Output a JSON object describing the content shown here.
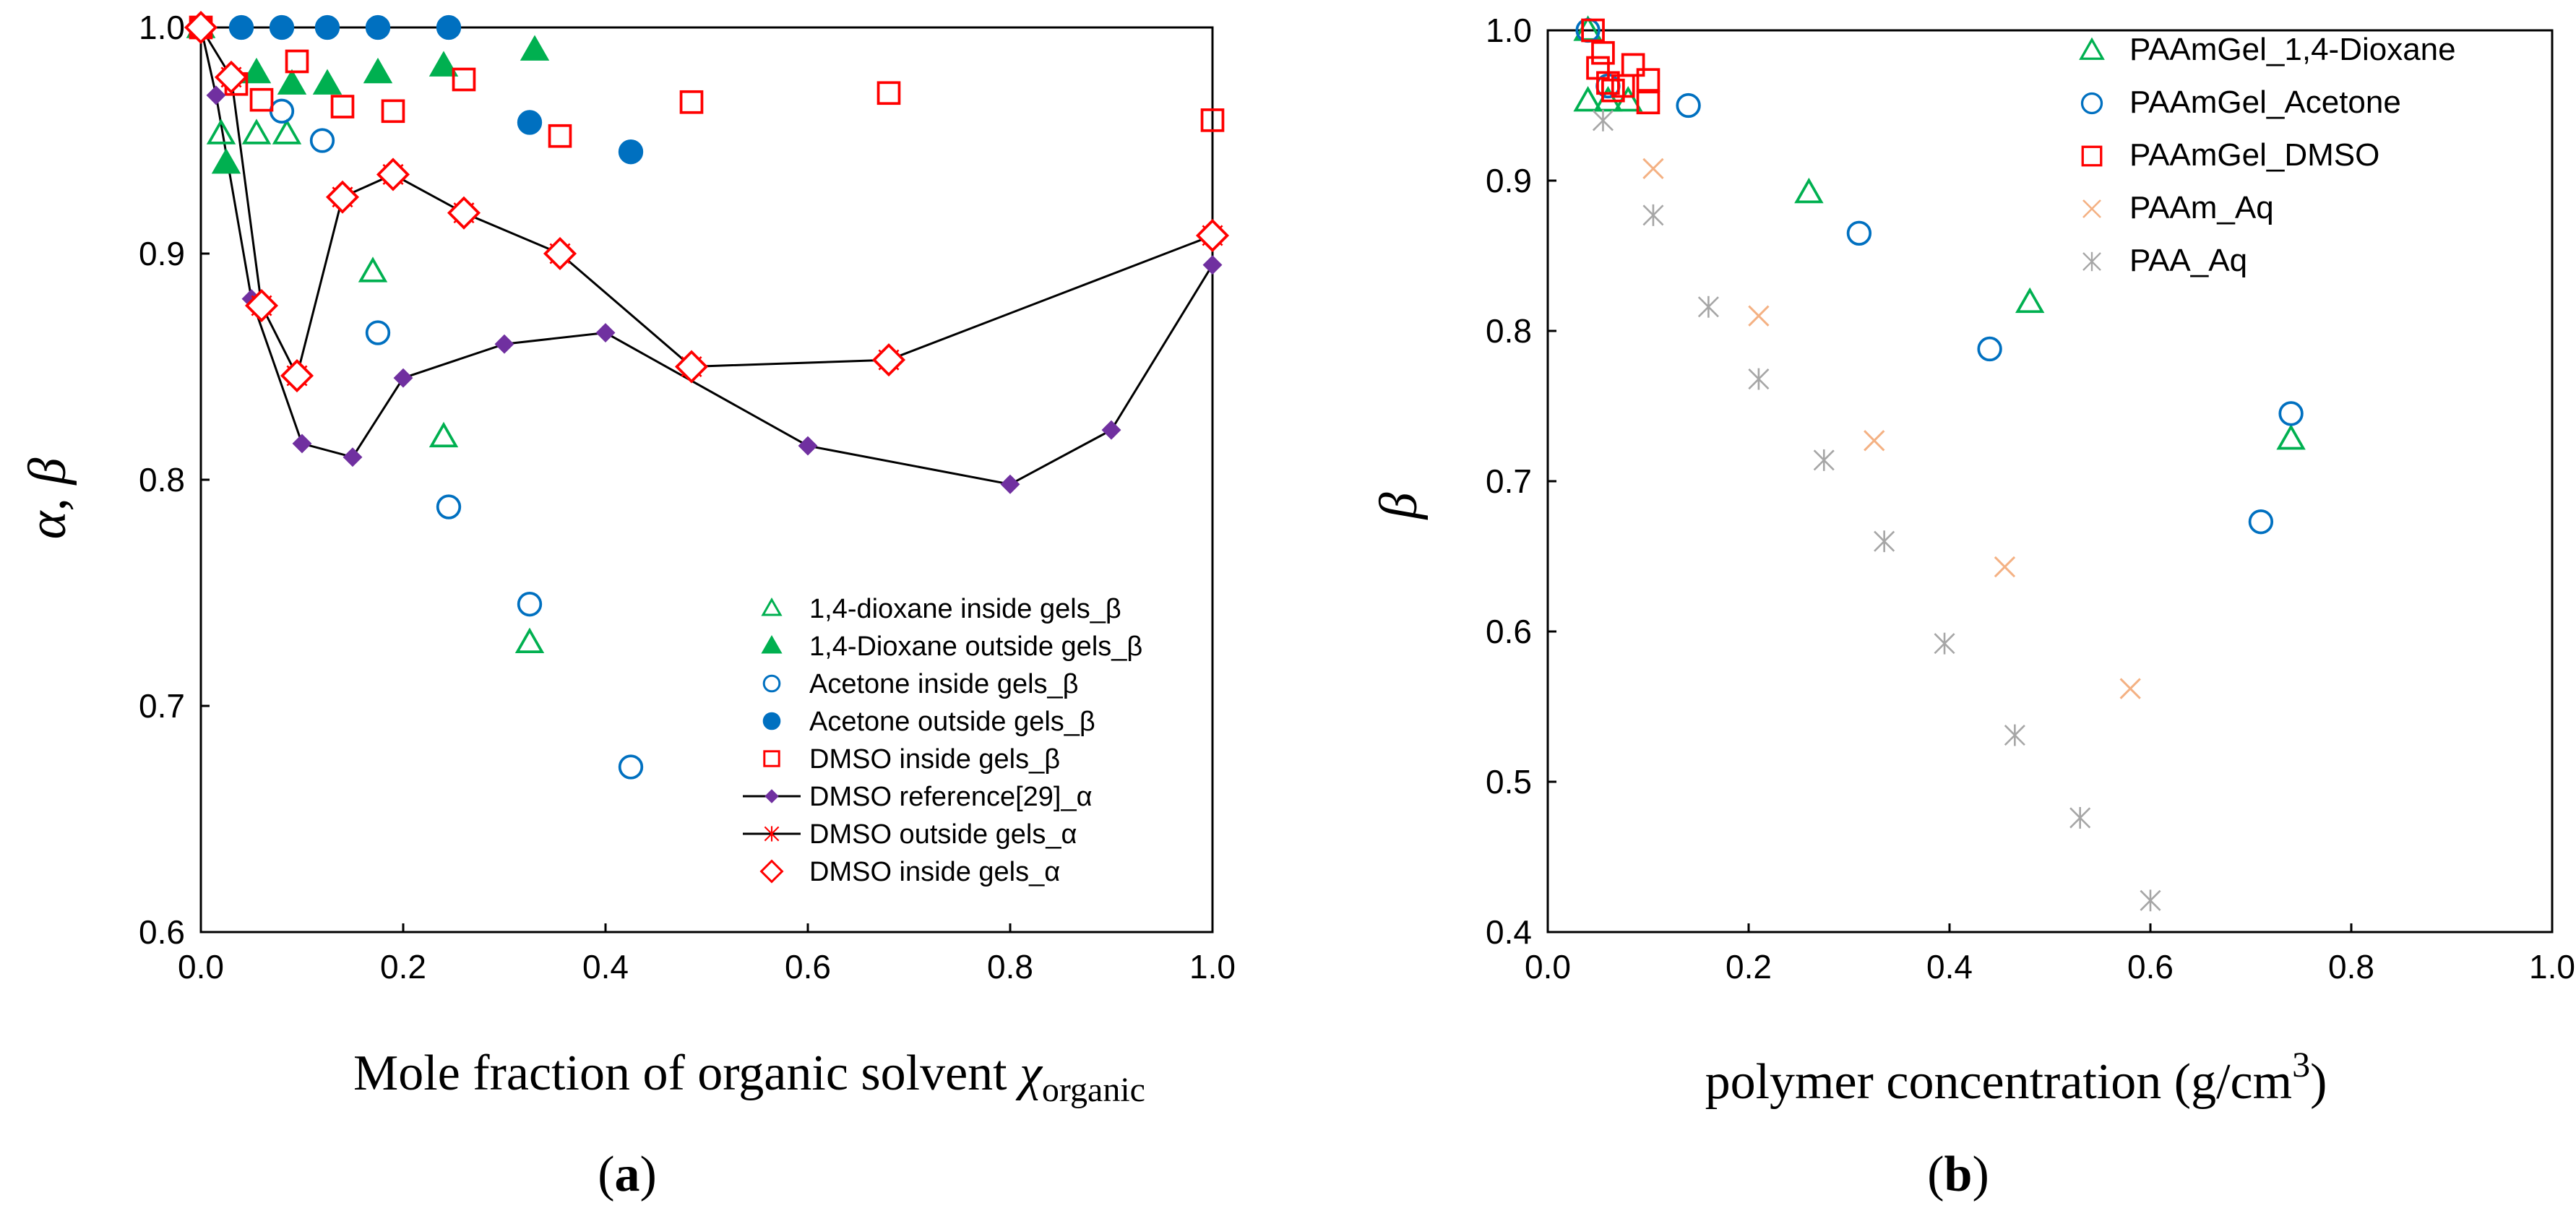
{
  "chart_data": [
    {
      "panel_label": "a",
      "type": "scatter",
      "xlabel_text": "Mole fraction of organic solvent ",
      "xlabel_symbol": "χ",
      "xlabel_subscript": "organic",
      "ylabel": "α, β",
      "xlim": [
        0,
        1.0
      ],
      "ylim": [
        0.6,
        1.0
      ],
      "xticks": [
        "0.0",
        "0.2",
        "0.4",
        "0.6",
        "0.8",
        "1.0"
      ],
      "yticks": [
        "0.6",
        "0.7",
        "0.8",
        "0.9",
        "1.0"
      ],
      "grid": false,
      "legend_position": "bottom-right",
      "series": [
        {
          "name": "1,4-dioxane inside gels_β",
          "marker": "triangle-open",
          "color": "#00b050",
          "points": [
            [
              0.0,
              1.0
            ],
            [
              0.02,
              0.953
            ],
            [
              0.055,
              0.953
            ],
            [
              0.085,
              0.953
            ],
            [
              0.17,
              0.892
            ],
            [
              0.24,
              0.819
            ],
            [
              0.325,
              0.728
            ]
          ]
        },
        {
          "name": "1,4-Dioxane outside gels_β",
          "marker": "triangle-filled",
          "color": "#00b050",
          "points": [
            [
              0.0,
              1.0
            ],
            [
              0.025,
              0.94
            ],
            [
              0.055,
              0.98
            ],
            [
              0.09,
              0.975
            ],
            [
              0.125,
              0.975
            ],
            [
              0.175,
              0.98
            ],
            [
              0.24,
              0.983
            ],
            [
              0.33,
              0.99
            ]
          ]
        },
        {
          "name": "Acetone inside gels_β",
          "marker": "circle-open",
          "color": "#0070c0",
          "points": [
            [
              0.0,
              1.0
            ],
            [
              0.08,
              0.963
            ],
            [
              0.12,
              0.95
            ],
            [
              0.175,
              0.865
            ],
            [
              0.245,
              0.788
            ],
            [
              0.325,
              0.745
            ],
            [
              0.425,
              0.673
            ]
          ]
        },
        {
          "name": "Acetone outside gels_β",
          "marker": "circle-filled",
          "color": "#0070c0",
          "points": [
            [
              0.0,
              1.0
            ],
            [
              0.04,
              1.0
            ],
            [
              0.08,
              1.0
            ],
            [
              0.125,
              1.0
            ],
            [
              0.175,
              1.0
            ],
            [
              0.245,
              1.0
            ],
            [
              0.325,
              0.958
            ],
            [
              0.425,
              0.945
            ]
          ]
        },
        {
          "name": "DMSO inside gels_β",
          "marker": "square-open",
          "color": "#ff0000",
          "points": [
            [
              0.0,
              1.0
            ],
            [
              0.035,
              0.975
            ],
            [
              0.06,
              0.968
            ],
            [
              0.095,
              0.985
            ],
            [
              0.14,
              0.965
            ],
            [
              0.19,
              0.963
            ],
            [
              0.26,
              0.977
            ],
            [
              0.355,
              0.952
            ],
            [
              0.485,
              0.967
            ],
            [
              0.68,
              0.971
            ],
            [
              1.0,
              0.959
            ]
          ]
        },
        {
          "name": "DMSO reference[29]_α",
          "marker": "diamond-filled-line",
          "color": "#7030a0",
          "points": [
            [
              0.0,
              1.0
            ],
            [
              0.015,
              0.97
            ],
            [
              0.05,
              0.88
            ],
            [
              0.1,
              0.816
            ],
            [
              0.15,
              0.81
            ],
            [
              0.2,
              0.845
            ],
            [
              0.3,
              0.86
            ],
            [
              0.4,
              0.865
            ],
            [
              0.6,
              0.815
            ],
            [
              0.8,
              0.798
            ],
            [
              0.9,
              0.822
            ],
            [
              1.0,
              0.895
            ]
          ]
        },
        {
          "name": "DMSO outside gels_α",
          "marker": "asterisk-line",
          "color": "#ff0000",
          "points": [
            [
              0.0,
              1.0
            ],
            [
              0.03,
              0.978
            ],
            [
              0.06,
              0.877
            ],
            [
              0.095,
              0.846
            ],
            [
              0.14,
              0.925
            ],
            [
              0.19,
              0.935
            ],
            [
              0.26,
              0.918
            ],
            [
              0.355,
              0.9
            ],
            [
              0.485,
              0.85
            ],
            [
              0.68,
              0.853
            ],
            [
              1.0,
              0.908
            ]
          ]
        },
        {
          "name": "DMSO inside gels_α",
          "marker": "diamond-open",
          "color": "#ff0000",
          "points": [
            [
              0.0,
              1.0
            ],
            [
              0.03,
              0.978
            ],
            [
              0.06,
              0.877
            ],
            [
              0.095,
              0.846
            ],
            [
              0.14,
              0.925
            ],
            [
              0.19,
              0.935
            ],
            [
              0.26,
              0.918
            ],
            [
              0.355,
              0.9
            ],
            [
              0.485,
              0.85
            ],
            [
              0.68,
              0.853
            ],
            [
              1.0,
              0.908
            ]
          ]
        }
      ]
    },
    {
      "panel_label": "b",
      "type": "scatter",
      "xlabel_text": "polymer concentration (g/cm",
      "xlabel_superscript": "3",
      "xlabel_close": ")",
      "ylabel": "β",
      "xlim": [
        0,
        1.0
      ],
      "ylim": [
        0.4,
        1.0
      ],
      "xticks": [
        "0.0",
        "0.2",
        "0.4",
        "0.6",
        "0.8",
        "1.0"
      ],
      "yticks": [
        "0.4",
        "0.5",
        "0.6",
        "0.7",
        "0.8",
        "0.9",
        "1.0"
      ],
      "grid": false,
      "legend_position": "top-right",
      "series": [
        {
          "name": "PAAmGel_1,4-Dioxane",
          "marker": "triangle-open",
          "color": "#00b050",
          "points": [
            [
              0.04,
              1.0
            ],
            [
              0.04,
              0.953
            ],
            [
              0.06,
              0.953
            ],
            [
              0.08,
              0.953
            ],
            [
              0.26,
              0.892
            ],
            [
              0.48,
              0.819
            ],
            [
              0.74,
              0.728
            ]
          ]
        },
        {
          "name": "PAAmGel_Acetone",
          "marker": "circle-open",
          "color": "#0070c0",
          "points": [
            [
              0.04,
              1.0
            ],
            [
              0.06,
              0.963
            ],
            [
              0.14,
              0.95
            ],
            [
              0.31,
              0.865
            ],
            [
              0.44,
              0.788
            ],
            [
              0.71,
              0.673
            ],
            [
              0.74,
              0.745
            ]
          ]
        },
        {
          "name": "PAAmGel_DMSO",
          "marker": "square-open",
          "color": "#ff0000",
          "points": [
            [
              0.045,
              1.0
            ],
            [
              0.05,
              0.975
            ],
            [
              0.055,
              0.985
            ],
            [
              0.06,
              0.965
            ],
            [
              0.065,
              0.96
            ],
            [
              0.075,
              0.963
            ],
            [
              0.085,
              0.977
            ],
            [
              0.1,
              0.967
            ],
            [
              0.1,
              0.952
            ]
          ]
        },
        {
          "name": "PAAm_Aq",
          "marker": "x",
          "color": "#f4b183",
          "points": [
            [
              0.105,
              0.908
            ],
            [
              0.21,
              0.81
            ],
            [
              0.325,
              0.727
            ],
            [
              0.455,
              0.643
            ],
            [
              0.58,
              0.562
            ]
          ]
        },
        {
          "name": "PAA_Aq",
          "marker": "asterisk",
          "color": "#a6a6a6",
          "points": [
            [
              0.055,
              0.94
            ],
            [
              0.105,
              0.877
            ],
            [
              0.16,
              0.816
            ],
            [
              0.21,
              0.768
            ],
            [
              0.275,
              0.714
            ],
            [
              0.335,
              0.66
            ],
            [
              0.395,
              0.592
            ],
            [
              0.465,
              0.531
            ],
            [
              0.53,
              0.476
            ],
            [
              0.6,
              0.421
            ]
          ]
        }
      ]
    }
  ]
}
